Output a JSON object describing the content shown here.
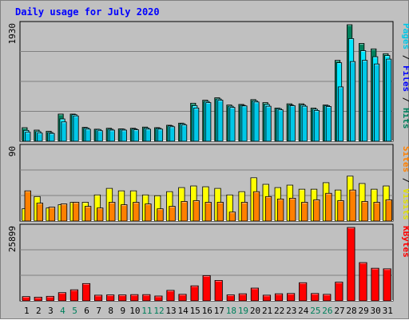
{
  "title": "Daily usage for July 2020",
  "colors": {
    "hits": "#00805c",
    "files": "#00e8ff",
    "pages": "#00c8e8",
    "visits": "#ffff00",
    "sites": "#ff8000",
    "kbytes": "#ff0000",
    "weekend_label": "#00805c",
    "weekday_label": "#000000",
    "panel_bg": "#c0c0c0",
    "plot_bg": "#c0c0c0"
  },
  "chart_data": [
    {
      "type": "bar",
      "panel": "top",
      "ymax_label": "1930",
      "ylim": [
        0,
        1930
      ],
      "legend": [
        {
          "text": "Pages",
          "color": "#00c8e8"
        },
        {
          "text": " / ",
          "color": "#000000"
        },
        {
          "text": "Files",
          "color": "#0000ff"
        },
        {
          "text": " / ",
          "color": "#000000"
        },
        {
          "text": "Hits",
          "color": "#00805c"
        }
      ],
      "categories": [
        "1",
        "2",
        "3",
        "4",
        "5",
        "6",
        "7",
        "8",
        "9",
        "10",
        "11",
        "12",
        "13",
        "14",
        "15",
        "16",
        "17",
        "18",
        "19",
        "20",
        "21",
        "22",
        "23",
        "24",
        "25",
        "26",
        "27",
        "28",
        "29",
        "30",
        "31"
      ],
      "series": [
        {
          "name": "Hits",
          "values": [
            225,
            185,
            165,
            450,
            450,
            230,
            200,
            215,
            205,
            215,
            235,
            225,
            265,
            300,
            630,
            680,
            720,
            600,
            610,
            690,
            640,
            550,
            620,
            620,
            550,
            600,
            1340,
            1930,
            1620,
            1530,
            1450
          ]
        },
        {
          "name": "Files",
          "values": [
            180,
            160,
            145,
            370,
            440,
            220,
            195,
            200,
            200,
            205,
            220,
            215,
            255,
            290,
            590,
            660,
            700,
            580,
            595,
            670,
            610,
            540,
            600,
            600,
            530,
            590,
            1300,
            1700,
            1500,
            1400,
            1420
          ]
        },
        {
          "name": "Pages",
          "values": [
            150,
            135,
            130,
            320,
            420,
            200,
            175,
            185,
            185,
            190,
            200,
            200,
            240,
            270,
            550,
            640,
            680,
            560,
            585,
            650,
            580,
            520,
            590,
            580,
            510,
            575,
            900,
            1320,
            1340,
            1280,
            1360
          ]
        }
      ]
    },
    {
      "type": "bar",
      "panel": "middle",
      "ymax_label": "90",
      "ylim": [
        0,
        90
      ],
      "legend": [
        {
          "text": "Sites",
          "color": "#ff8000"
        },
        {
          "text": " / ",
          "color": "#000000"
        },
        {
          "text": "Visits",
          "color": "#e0e000"
        }
      ],
      "categories": [
        "1",
        "2",
        "3",
        "4",
        "5",
        "6",
        "7",
        "8",
        "9",
        "10",
        "11",
        "12",
        "13",
        "14",
        "15",
        "16",
        "17",
        "18",
        "19",
        "20",
        "21",
        "22",
        "23",
        "24",
        "25",
        "26",
        "27",
        "28",
        "29",
        "30",
        "31"
      ],
      "series": [
        {
          "name": "Visits",
          "values": [
            15,
            30,
            16,
            20,
            23,
            23,
            32,
            40,
            37,
            37,
            32,
            31,
            36,
            41,
            43,
            42,
            40,
            32,
            36,
            53,
            45,
            41,
            44,
            39,
            39,
            47,
            38,
            55,
            46,
            39,
            43
          ]
        },
        {
          "name": "Sites",
          "values": [
            37,
            22,
            17,
            21,
            23,
            18,
            16,
            23,
            20,
            23,
            21,
            15,
            18,
            24,
            25,
            23,
            23,
            11,
            23,
            36,
            30,
            27,
            28,
            23,
            26,
            34,
            25,
            38,
            24,
            23,
            26
          ]
        }
      ]
    },
    {
      "type": "bar",
      "panel": "bottom",
      "ymax_label": "25899",
      "ylim": [
        0,
        25899
      ],
      "legend": [
        {
          "text": "KBytes",
          "color": "#ff0000"
        }
      ],
      "categories": [
        "1",
        "2",
        "3",
        "4",
        "5",
        "6",
        "7",
        "8",
        "9",
        "10",
        "11",
        "12",
        "13",
        "14",
        "15",
        "16",
        "17",
        "18",
        "19",
        "20",
        "21",
        "22",
        "23",
        "24",
        "25",
        "26",
        "27",
        "28",
        "29",
        "30",
        "31"
      ],
      "series": [
        {
          "name": "KBytes",
          "values": [
            1500,
            1300,
            1600,
            2900,
            3900,
            6100,
            2000,
            2100,
            2100,
            2200,
            2200,
            1700,
            3700,
            2300,
            5300,
            8900,
            7200,
            2100,
            2500,
            4500,
            2000,
            2500,
            2600,
            6400,
            2600,
            2300,
            6600,
            25899,
            13500,
            11500,
            11300
          ]
        }
      ]
    }
  ],
  "x_labels": [
    "1",
    "2",
    "3",
    "4",
    "5",
    "6",
    "7",
    "8",
    "9",
    "10",
    "11",
    "12",
    "13",
    "14",
    "15",
    "16",
    "17",
    "18",
    "19",
    "20",
    "21",
    "22",
    "23",
    "24",
    "25",
    "26",
    "27",
    "28",
    "29",
    "30",
    "31"
  ],
  "weekend_days": [
    4,
    5,
    11,
    12,
    18,
    19,
    25,
    26
  ]
}
